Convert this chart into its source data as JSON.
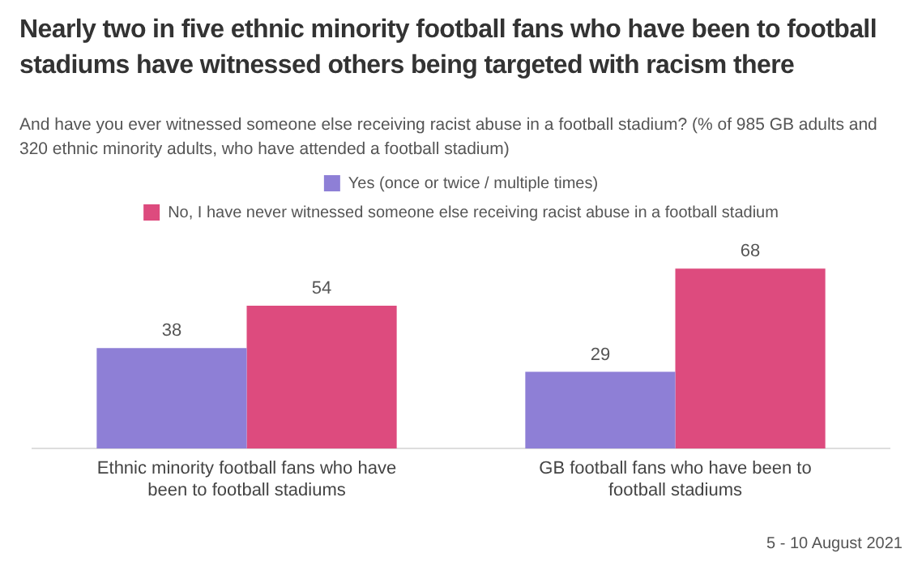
{
  "chart_data": {
    "type": "bar",
    "title": "Nearly two in five ethnic minority football fans who have been to football stadiums have witnessed others being targeted with racism there",
    "subtitle": "And have you ever witnessed someone else receiving racist abuse in a football stadium? (% of 985 GB adults and 320 ethnic minority adults, who have attended a football stadium)",
    "categories": [
      "Ethnic minority football fans who have been to football stadiums",
      "GB football fans who have been to football stadiums"
    ],
    "series": [
      {
        "name": "Yes (once or twice / multiple times)",
        "color": "#8e7fd6",
        "values": [
          38,
          29
        ]
      },
      {
        "name": "No, I have never witnessed someone else receiving racist abuse in a football stadium",
        "color": "#dd4b7e",
        "values": [
          54,
          68
        ]
      }
    ],
    "data_labels": true,
    "grid": false,
    "legend": "top",
    "annotations": [
      "5 - 10 August 2021"
    ]
  }
}
